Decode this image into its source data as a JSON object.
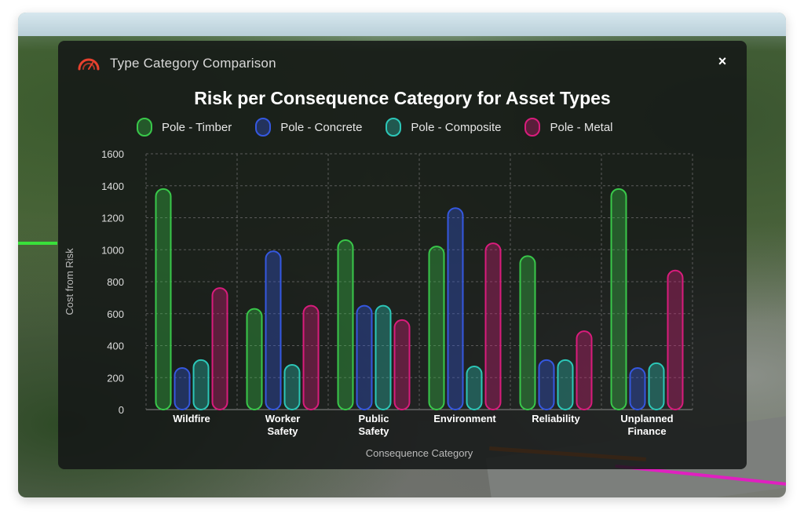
{
  "dialog": {
    "title": "Type Category Comparison",
    "close_label": "×"
  },
  "colors": {
    "timber": "#39c84a",
    "concrete": "#3558e0",
    "composite": "#2cc7b8",
    "metal": "#d91c7c",
    "accent_icon": "#e8412e"
  },
  "chart_data": {
    "type": "bar",
    "title": "Risk per Consequence Category for Asset Types",
    "xlabel": "Consequence Category",
    "ylabel": "Cost from Risk",
    "ylim": [
      0,
      1600
    ],
    "yticks": [
      0,
      200,
      400,
      600,
      800,
      1000,
      1200,
      1400,
      1600
    ],
    "grid": true,
    "legend_position": "top",
    "categories": [
      [
        "Wildfire"
      ],
      [
        "Worker",
        "Safety"
      ],
      [
        "Public",
        "Safety"
      ],
      [
        "Environment"
      ],
      [
        "Reliability"
      ],
      [
        "Unplanned",
        "Finance"
      ]
    ],
    "series": [
      {
        "name": "Pole - Timber",
        "color_key": "timber",
        "values": [
          1380,
          630,
          1060,
          1020,
          960,
          1380
        ]
      },
      {
        "name": "Pole - Concrete",
        "color_key": "concrete",
        "values": [
          260,
          990,
          650,
          1260,
          310,
          260
        ]
      },
      {
        "name": "Pole - Composite",
        "color_key": "composite",
        "values": [
          310,
          280,
          650,
          270,
          310,
          290
        ]
      },
      {
        "name": "Pole - Metal",
        "color_key": "metal",
        "values": [
          760,
          650,
          560,
          1040,
          490,
          870
        ]
      }
    ]
  }
}
